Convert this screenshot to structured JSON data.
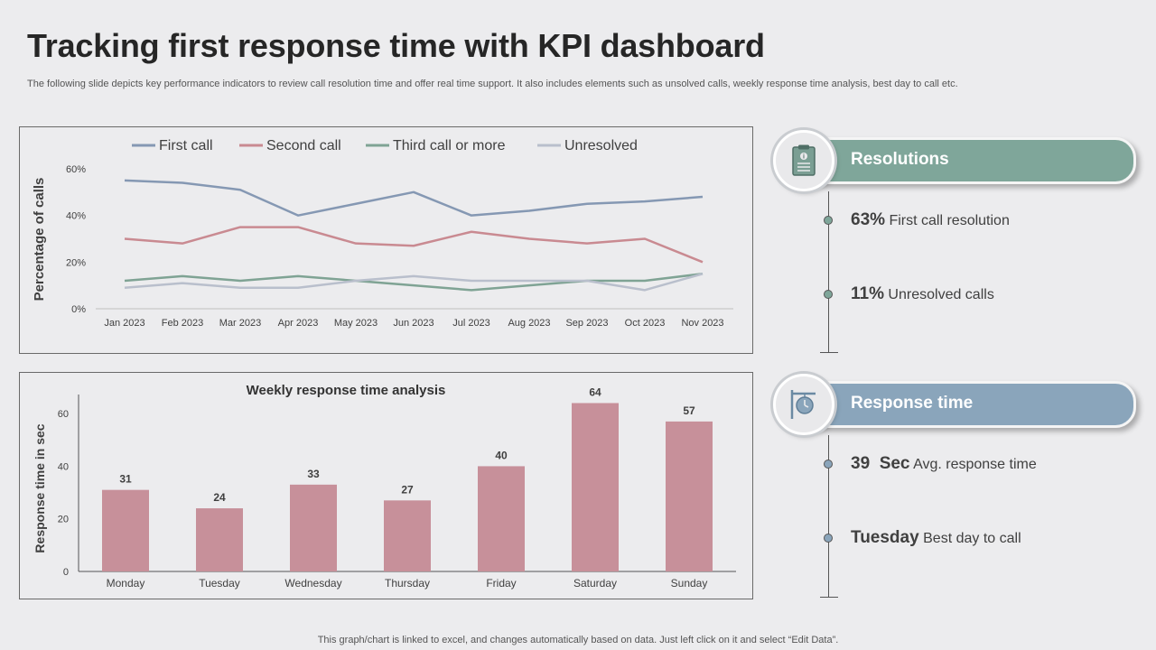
{
  "header": {
    "title": "Tracking first response time with KPI dashboard",
    "subtitle": "The following slide depicts key performance indicators to review call resolution time and offer real time support. It also includes elements such as unsolved calls, weekly response time analysis, best day to call etc."
  },
  "footer": "This graph/chart is linked to excel, and changes automatically based on data. Just left click on it and select “Edit Data”.",
  "chart_data": [
    {
      "type": "line",
      "title": "",
      "ylabel": "Percentage of calls",
      "xlabel": "",
      "categories": [
        "Jan 2023",
        "Feb 2023",
        "Mar 2023",
        "Apr 2023",
        "May 2023",
        "Jun 2023",
        "Jul 2023",
        "Aug 2023",
        "Sep 2023",
        "Oct 2023",
        "Nov 2023"
      ],
      "ylim": [
        0,
        60
      ],
      "yticks": [
        "0%",
        "20%",
        "40%",
        "60%"
      ],
      "legend_position": "top",
      "grid": false,
      "series": [
        {
          "name": "First call",
          "color": "#8598b3",
          "values": [
            55,
            54,
            51,
            40,
            45,
            50,
            40,
            42,
            45,
            46,
            48
          ]
        },
        {
          "name": "Second call",
          "color": "#c98a91",
          "values": [
            30,
            28,
            35,
            35,
            28,
            27,
            33,
            30,
            28,
            30,
            20
          ]
        },
        {
          "name": "Third call or more",
          "color": "#7fa394",
          "values": [
            12,
            14,
            12,
            14,
            12,
            10,
            8,
            10,
            12,
            12,
            15
          ]
        },
        {
          "name": "Unresolved",
          "color": "#b9bfcc",
          "values": [
            9,
            11,
            9,
            9,
            12,
            14,
            12,
            12,
            12,
            8,
            15
          ]
        }
      ]
    },
    {
      "type": "bar",
      "title": "Weekly response time analysis",
      "ylabel": "Response time in sec",
      "xlabel": "",
      "categories": [
        "Monday",
        "Tuesday",
        "Wednesday",
        "Thursday",
        "Friday",
        "Saturday",
        "Sunday"
      ],
      "values": [
        31,
        24,
        33,
        27,
        40,
        64,
        57
      ],
      "ylim": [
        0,
        70
      ],
      "yticks": [
        0,
        20,
        40,
        60
      ],
      "bar_color": "#c7909a",
      "grid": false
    }
  ],
  "resolutions": {
    "label": "Resolutions",
    "color": "#7fa69a",
    "icon": "clipboard-icon",
    "items": [
      {
        "value": "63%",
        "text": " First call resolution"
      },
      {
        "value": "11%",
        "text": " Unresolved calls"
      }
    ]
  },
  "response_time": {
    "label": "Response time",
    "color": "#8aa5bb",
    "icon": "clock-sign-icon",
    "items": [
      {
        "value": "39  Sec",
        "text": " Avg. response time"
      },
      {
        "value": "Tuesday",
        "text": " Best day to call"
      }
    ]
  }
}
